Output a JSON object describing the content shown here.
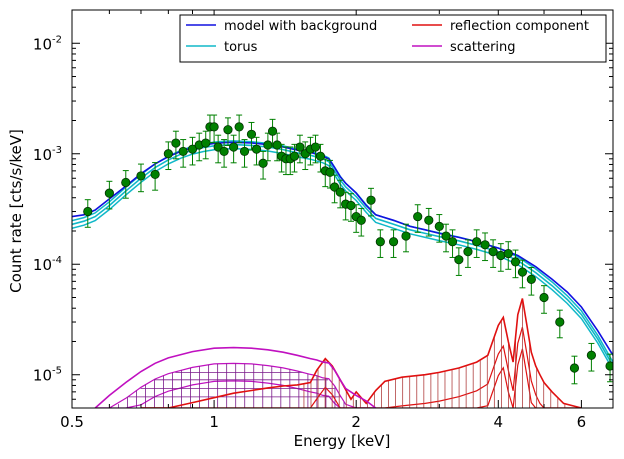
{
  "chart_data": {
    "type": "line",
    "xlabel": "Energy [keV]",
    "ylabel": "Count rate [cts/s/keV]",
    "x_scale": "log",
    "y_scale": "log",
    "xlim": [
      0.5,
      7.0
    ],
    "ylim": [
      5e-06,
      0.02
    ],
    "x_ticks": [
      {
        "value": 0.5,
        "label": "0.5"
      },
      {
        "value": 1,
        "label": "1"
      },
      {
        "value": 2,
        "label": "2"
      },
      {
        "value": 4,
        "label": "4"
      },
      {
        "value": 6,
        "label": "6"
      }
    ],
    "y_ticks": [
      {
        "value": 1e-05,
        "base": "10",
        "exp": "-5"
      },
      {
        "value": 0.0001,
        "base": "10",
        "exp": "-4"
      },
      {
        "value": 0.001,
        "base": "10",
        "exp": "-3"
      },
      {
        "value": 0.01,
        "base": "10",
        "exp": "-2"
      }
    ],
    "legend_position": "top-right",
    "legend_columns": 2,
    "series": [
      {
        "name": "model with background",
        "color": "#1010e0",
        "x": [
          0.5,
          0.53,
          0.56,
          0.6,
          0.65,
          0.7,
          0.75,
          0.8,
          0.85,
          0.9,
          0.95,
          1.0,
          1.05,
          1.1,
          1.2,
          1.3,
          1.4,
          1.5,
          1.6,
          1.7,
          1.75,
          1.8,
          1.85,
          1.9,
          2.0,
          2.1,
          2.2,
          2.4,
          2.6,
          2.8,
          3.0,
          3.3,
          3.6,
          4.0,
          4.4,
          4.8,
          5.2,
          5.6,
          6.0,
          6.5,
          7.0
        ],
        "y": [
          0.00027,
          0.00028,
          0.00031,
          0.00039,
          0.00051,
          0.00066,
          0.00081,
          0.00094,
          0.00105,
          0.00114,
          0.0012,
          0.00124,
          0.00126,
          0.00127,
          0.00125,
          0.00121,
          0.00115,
          0.00108,
          0.00103,
          0.00095,
          0.0009,
          0.00075,
          0.00062,
          0.00054,
          0.00044,
          0.00034,
          0.00028,
          0.00025,
          0.00022,
          0.000205,
          0.00019,
          0.000175,
          0.00016,
          0.00014,
          0.00012,
          9.5e-05,
          7.3e-05,
          5.6e-05,
          4.1e-05,
          2.5e-05,
          1.5e-05
        ]
      },
      {
        "name": "torus",
        "color": "#10b8c8",
        "x": [
          0.5,
          0.53,
          0.56,
          0.6,
          0.65,
          0.7,
          0.75,
          0.8,
          0.85,
          0.9,
          0.95,
          1.0,
          1.05,
          1.1,
          1.2,
          1.3,
          1.4,
          1.5,
          1.6,
          1.7,
          1.75,
          1.8,
          1.85,
          1.9,
          2.0,
          2.1,
          2.2,
          2.4,
          2.6,
          2.8,
          3.0,
          3.3,
          3.6,
          4.0,
          4.4,
          4.8,
          5.2,
          5.6,
          6.0,
          6.5,
          7.0
        ],
        "y": [
          0.00023,
          0.000245,
          0.00027,
          0.00034,
          0.00046,
          0.0006,
          0.00075,
          0.00088,
          0.00099,
          0.00108,
          0.00114,
          0.00118,
          0.0012,
          0.00121,
          0.00119,
          0.00115,
          0.00109,
          0.00102,
          0.00097,
          0.0009,
          0.00085,
          0.0007,
          0.00058,
          0.0005,
          0.00041,
          0.00032,
          0.00026,
          0.00023,
          0.000205,
          0.00019,
          0.000178,
          0.000163,
          0.000148,
          0.00013,
          0.000108,
          8.4e-05,
          6.4e-05,
          4.8e-05,
          3.5e-05,
          2.1e-05,
          1.2e-05
        ]
      },
      {
        "name": "reflection component",
        "color": "#e01010",
        "x": [
          0.7,
          0.8,
          0.9,
          1.0,
          1.1,
          1.2,
          1.3,
          1.4,
          1.5,
          1.6,
          1.65,
          1.72,
          1.78,
          1.85,
          1.95,
          2.0,
          2.1,
          2.2,
          2.3,
          2.5,
          2.8,
          3.0,
          3.3,
          3.6,
          3.8,
          4.0,
          4.1,
          4.2,
          4.3,
          4.4,
          4.5,
          4.6,
          4.7,
          4.8,
          4.9,
          5.0,
          5.2,
          5.5,
          6.0
        ],
        "y": [
          4e-06,
          5e-06,
          5.6e-06,
          6.2e-06,
          6.8e-06,
          7.2e-06,
          7.6e-06,
          7.9e-06,
          8.1e-06,
          8.5e-06,
          1.1e-05,
          1.4e-05,
          1.2e-05,
          9e-06,
          6e-06,
          7e-06,
          5.5e-06,
          7.2e-06,
          8.7e-06,
          9.5e-06,
          1e-05,
          1.05e-05,
          1.15e-05,
          1.3e-05,
          1.5e-05,
          2.8e-05,
          3.3e-05,
          2e-05,
          1.3e-05,
          3.5e-05,
          4.9e-05,
          2.8e-05,
          1.6e-05,
          1.2e-05,
          1e-05,
          8.5e-06,
          7e-06,
          5.5e-06,
          4e-06
        ]
      },
      {
        "name": "scattering",
        "color": "#c010c0",
        "x": [
          0.56,
          0.6,
          0.65,
          0.7,
          0.75,
          0.8,
          0.9,
          1.0,
          1.1,
          1.2,
          1.3,
          1.4,
          1.5,
          1.6,
          1.65,
          1.7,
          1.75,
          1.8,
          1.85,
          1.9,
          2.0,
          2.1,
          2.2
        ],
        "y": [
          5e-06,
          6.5e-06,
          8.5e-06,
          1.07e-05,
          1.27e-05,
          1.42e-05,
          1.62e-05,
          1.74e-05,
          1.76e-05,
          1.74e-05,
          1.68e-05,
          1.6e-05,
          1.5e-05,
          1.4e-05,
          1.36e-05,
          1.3e-05,
          1.28e-05,
          1.1e-05,
          9e-06,
          7.5e-06,
          6.5e-06,
          5.8e-06,
          5e-06
        ]
      }
    ],
    "data_points": {
      "color": "#008000",
      "x": [
        0.54,
        0.6,
        0.65,
        0.7,
        0.75,
        0.8,
        0.83,
        0.86,
        0.9,
        0.93,
        0.96,
        0.98,
        1.0,
        1.02,
        1.05,
        1.07,
        1.1,
        1.13,
        1.16,
        1.2,
        1.23,
        1.27,
        1.3,
        1.33,
        1.36,
        1.39,
        1.42,
        1.45,
        1.48,
        1.52,
        1.56,
        1.6,
        1.64,
        1.68,
        1.72,
        1.76,
        1.8,
        1.85,
        1.9,
        1.95,
        2.0,
        2.05,
        2.15,
        2.25,
        2.4,
        2.55,
        2.7,
        2.85,
        3.0,
        3.1,
        3.2,
        3.3,
        3.45,
        3.6,
        3.75,
        3.9,
        4.05,
        4.2,
        4.35,
        4.5,
        4.7,
        5.0,
        5.4,
        5.8,
        6.3,
        6.9
      ],
      "y": [
        0.0003,
        0.00044,
        0.00055,
        0.00063,
        0.00065,
        0.001,
        0.00125,
        0.00105,
        0.0011,
        0.0012,
        0.00125,
        0.00175,
        0.00175,
        0.00115,
        0.00105,
        0.00165,
        0.00115,
        0.00175,
        0.00105,
        0.0015,
        0.0011,
        0.00082,
        0.0012,
        0.0016,
        0.0012,
        0.00095,
        0.0009,
        0.0009,
        0.00095,
        0.00115,
        0.001,
        0.0011,
        0.00115,
        0.00095,
        0.0007,
        0.00068,
        0.0005,
        0.00045,
        0.00035,
        0.00034,
        0.00027,
        0.00025,
        0.00038,
        0.00016,
        0.00016,
        0.00018,
        0.00027,
        0.00025,
        0.00022,
        0.00018,
        0.00016,
        0.00011,
        0.00013,
        0.00016,
        0.00015,
        0.00013,
        0.00012,
        0.000125,
        0.000105,
        8.5e-05,
        7.3e-05,
        5e-05,
        3e-05,
        1.15e-05,
        1.5e-05,
        1.2e-05
      ],
      "err_frac": 0.28
    }
  }
}
